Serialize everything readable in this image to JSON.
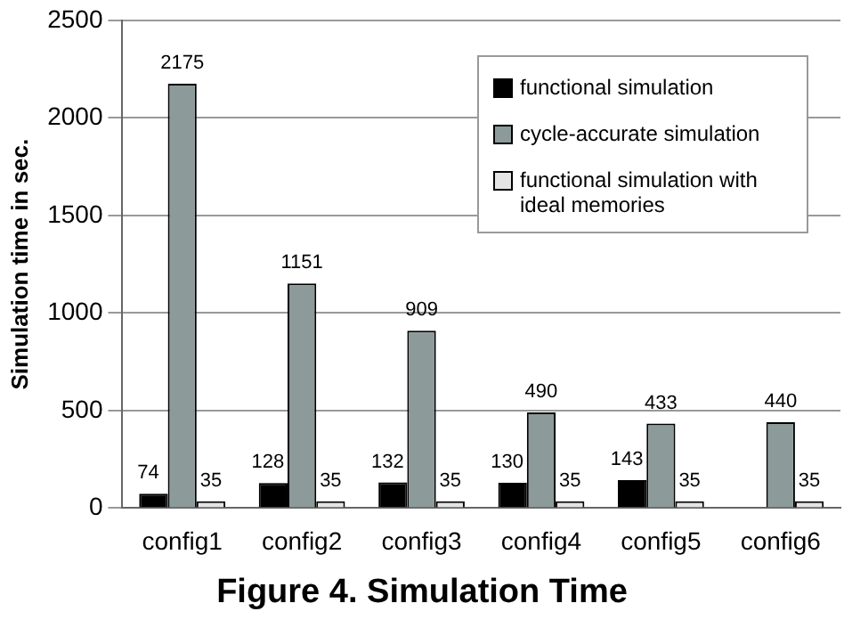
{
  "chart_data": {
    "type": "bar",
    "title": "Figure 4. Simulation Time",
    "ylabel": "Simulation time in sec.",
    "categories": [
      "config1",
      "config2",
      "config3",
      "config4",
      "config5",
      "config6"
    ],
    "series": [
      {
        "name": "functional simulation",
        "color": "#000000",
        "values": [
          74,
          128,
          132,
          130,
          143,
          null
        ]
      },
      {
        "name": "cycle-accurate simulation",
        "color": "#8c9a9a",
        "values": [
          2175,
          1151,
          909,
          490,
          433,
          440
        ]
      },
      {
        "name": "functional simulation with ideal memories",
        "color": "#e4e4e4",
        "values": [
          35,
          35,
          35,
          35,
          35,
          35
        ]
      }
    ],
    "ylim": [
      0,
      2500
    ],
    "yticks": [
      0,
      500,
      1000,
      1500,
      2000,
      2500
    ],
    "grid": "y",
    "legend": "top right",
    "data_labels": true
  }
}
